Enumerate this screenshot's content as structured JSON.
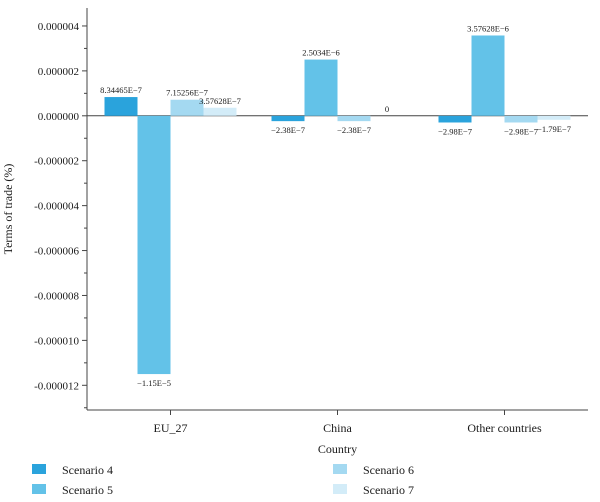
{
  "chart_data": {
    "type": "bar",
    "xlabel": "Country",
    "ylabel": "Terms of trade (%)",
    "categories": [
      "EU_27",
      "China",
      "Other countries"
    ],
    "ylim": [
      -1.31e-05,
      4.8e-06
    ],
    "yticks": [
      {
        "value": 4e-06,
        "label": "0.000004"
      },
      {
        "value": 2e-06,
        "label": "0.000002"
      },
      {
        "value": 0.0,
        "label": "0.000000"
      },
      {
        "value": -2e-06,
        "label": "-0.000002"
      },
      {
        "value": -4e-06,
        "label": "-0.000004"
      },
      {
        "value": -6e-06,
        "label": "-0.000006"
      },
      {
        "value": -8e-06,
        "label": "-0.000008"
      },
      {
        "value": -1e-05,
        "label": "-0.000010"
      },
      {
        "value": -1.2e-05,
        "label": "-0.000012"
      }
    ],
    "series": [
      {
        "name": "Scenario 4",
        "color": "#2aa3dc",
        "values": [
          8.34465e-07,
          -2.38e-07,
          -2.98e-07
        ],
        "labels": [
          "8.34465E−7",
          "−2.38E−7",
          "−2.98E−7"
        ]
      },
      {
        "name": "Scenario 5",
        "color": "#63c2e8",
        "values": [
          -1.15e-05,
          2.5034e-06,
          3.57628e-06
        ],
        "labels": [
          "−1.15E−5",
          "2.5034E−6",
          "3.57628E−6"
        ]
      },
      {
        "name": "Scenario 6",
        "color": "#a4d9f1",
        "values": [
          7.15256e-07,
          -2.38e-07,
          -2.98e-07
        ],
        "labels": [
          "7.15256E−7",
          "−2.38E−7",
          "−2.98E−7"
        ]
      },
      {
        "name": "Scenario 7",
        "color": "#d3ecf8",
        "values": [
          3.57628e-07,
          0,
          -1.79e-07
        ],
        "labels": [
          "3.57628E−7",
          "0",
          "−1.79E−7"
        ]
      }
    ],
    "legend_position": "bottom",
    "grid": false
  }
}
